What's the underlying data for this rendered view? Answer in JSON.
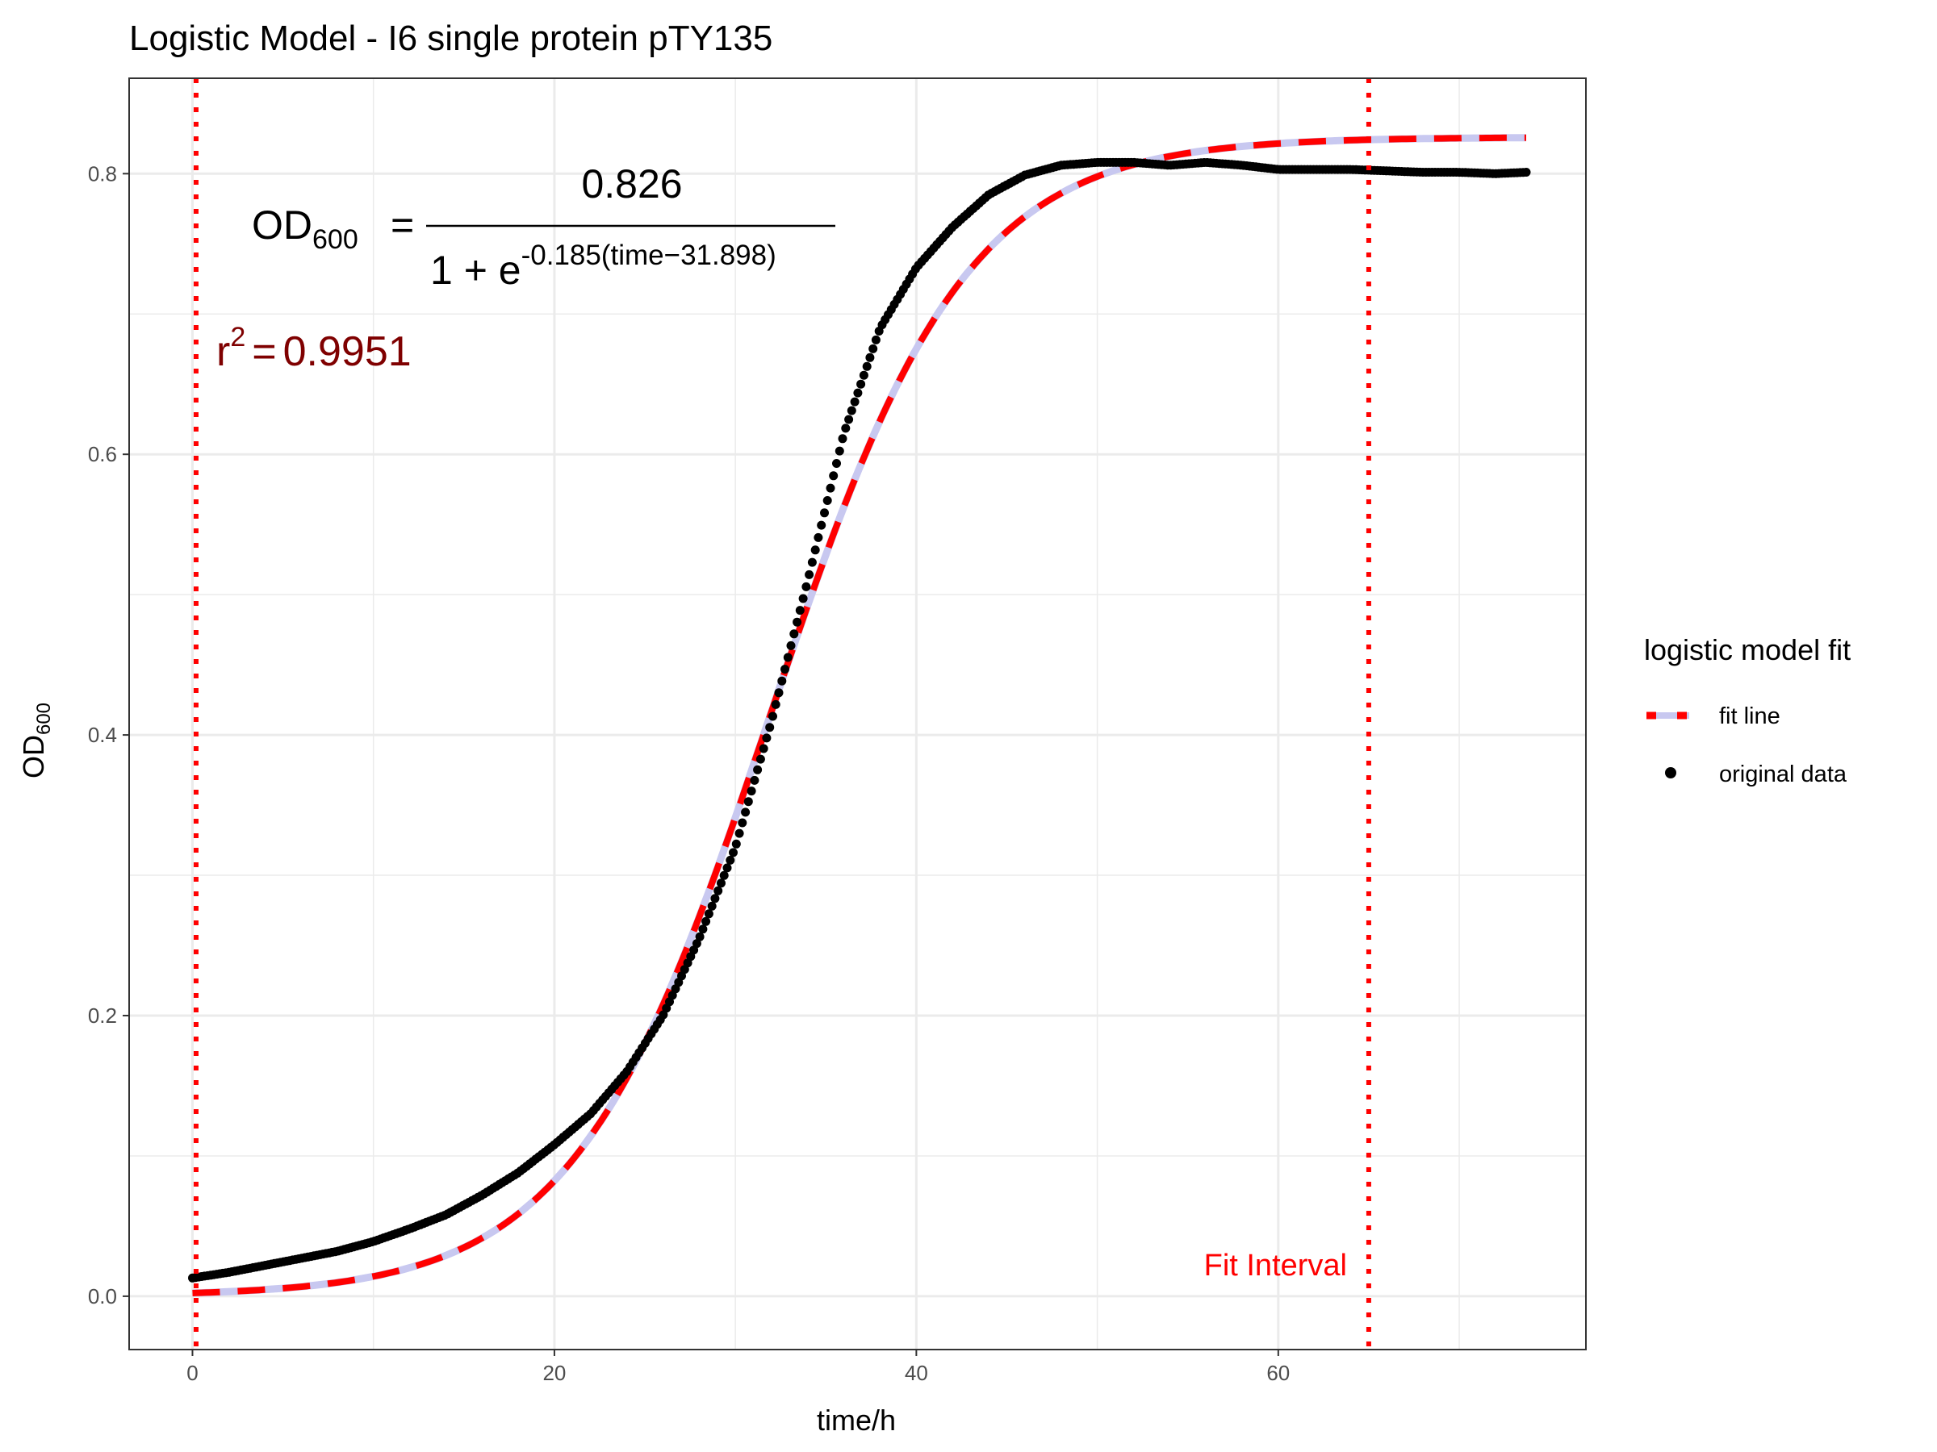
{
  "chart_data": {
    "type": "scatter",
    "title": "Logistic Model -  I6 single protein pTY135",
    "xlabel": "time/h",
    "ylabel": {
      "main": "OD",
      "sub": "600"
    },
    "xlim": [
      -3.5,
      77
    ],
    "ylim": [
      -0.038,
      0.868
    ],
    "x_ticks": [
      0,
      20,
      40,
      60
    ],
    "y_ticks": [
      0.0,
      0.2,
      0.4,
      0.6,
      0.8
    ],
    "x_tick_labels": [
      "0",
      "20",
      "40",
      "60"
    ],
    "y_tick_labels": [
      "0.0",
      "0.2",
      "0.4",
      "0.6",
      "0.8"
    ],
    "grid": true,
    "legend_position": "right",
    "legend": {
      "title": "logistic model fit",
      "items": [
        {
          "label": "fit line",
          "symbol": "dashed-line",
          "color": "#ff0000"
        },
        {
          "label": "original data",
          "symbol": "point",
          "color": "#000000"
        }
      ]
    },
    "fit_model": {
      "K": 0.826,
      "r": 0.185,
      "t0": 31.898,
      "x_range": [
        0,
        73.7
      ]
    },
    "equation": {
      "lhs_main": "OD",
      "lhs_sub": "600",
      "equals": "=",
      "numerator": "0.826",
      "denominator_prefix": "1 + e",
      "exponent": "-0.185(time−31.898)"
    },
    "r_squared": {
      "label": "r",
      "power": "2",
      "equals": "=",
      "value": "0.9951"
    },
    "fit_interval": {
      "label": "Fit Interval",
      "x_start": 0.2,
      "x_end": 65.0
    },
    "original_data_anchors": {
      "x": [
        0,
        2,
        4,
        6,
        8,
        10,
        12,
        14,
        16,
        18,
        20,
        22,
        24,
        26,
        28,
        30,
        32,
        34,
        36,
        38,
        40,
        42,
        44,
        46,
        48,
        50,
        52,
        54,
        56,
        58,
        60,
        62,
        64,
        66,
        68,
        70,
        72,
        73.7
      ],
      "y": [
        0.013,
        0.017,
        0.022,
        0.027,
        0.032,
        0.039,
        0.048,
        0.058,
        0.072,
        0.088,
        0.108,
        0.13,
        0.16,
        0.2,
        0.255,
        0.32,
        0.41,
        0.51,
        0.615,
        0.69,
        0.733,
        0.762,
        0.785,
        0.799,
        0.806,
        0.808,
        0.808,
        0.806,
        0.808,
        0.806,
        0.803,
        0.803,
        0.803,
        0.802,
        0.801,
        0.801,
        0.8,
        0.801
      ],
      "n_points": 440
    },
    "colors": {
      "fit_line": "#ff0000",
      "fit_line_shade": "#c8c8f0",
      "points": "#000000",
      "interval_lines": "#ff0000",
      "r2_text": "#7f0000",
      "grid": "#ebebeb",
      "panel_border": "#333333"
    }
  }
}
